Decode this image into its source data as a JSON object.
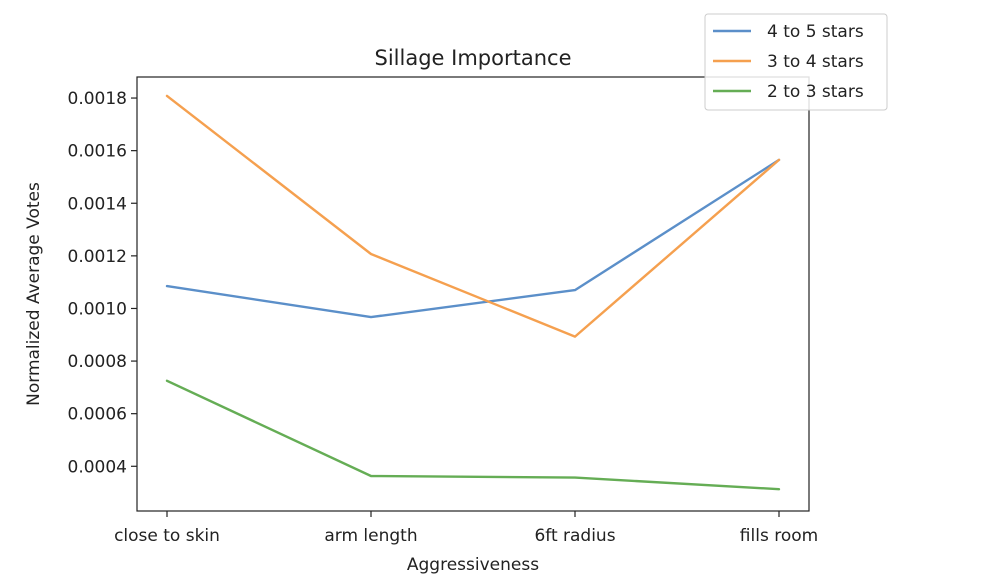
{
  "chart_data": {
    "type": "line",
    "title": "Sillage Importance",
    "xlabel": "Aggressiveness",
    "ylabel": "Normalized Average Votes",
    "categories": [
      "close to skin",
      "arm length",
      "6ft radius",
      "fills room"
    ],
    "ylim": [
      0.00023,
      0.00188
    ],
    "yticks": [
      0.0004,
      0.0006,
      0.0008,
      0.001,
      0.0012,
      0.0014,
      0.0016,
      0.0018
    ],
    "ytick_labels": [
      "0.0004",
      "0.0006",
      "0.0008",
      "0.0010",
      "0.0012",
      "0.0014",
      "0.0016",
      "0.0018"
    ],
    "grid": false,
    "legend_position": "top-right",
    "series": [
      {
        "name": "4 to 5 stars",
        "color": "#5b8fc9",
        "values": [
          0.001085,
          0.000967,
          0.00107,
          0.001565
        ]
      },
      {
        "name": "3 to 4 stars",
        "color": "#f5a04f",
        "values": [
          0.001808,
          0.001207,
          0.000893,
          0.001565
        ]
      },
      {
        "name": "2 to 3 stars",
        "color": "#65ad55",
        "values": [
          0.000725,
          0.000363,
          0.000357,
          0.000313
        ]
      }
    ]
  }
}
